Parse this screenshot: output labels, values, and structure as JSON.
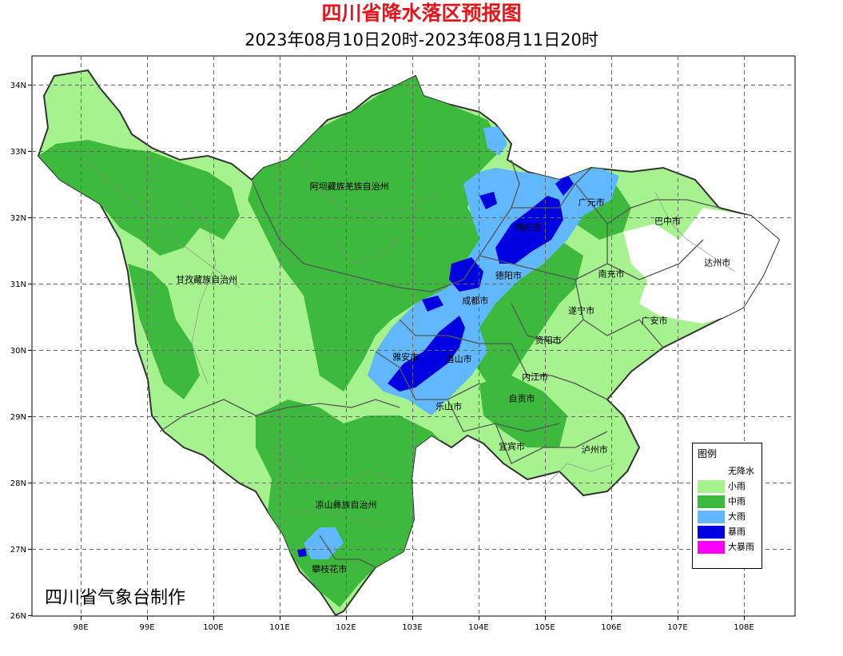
{
  "title": "四川省降水落区预报图",
  "subtitle": "2023年08月10日20时-2023年08月11日20时",
  "credit": "四川省气象台制作",
  "axes": {
    "lon_labels": [
      "98E",
      "99E",
      "100E",
      "101E",
      "102E",
      "103E",
      "104E",
      "105E",
      "106E",
      "107E",
      "108E"
    ],
    "lat_labels": [
      "34N",
      "33N",
      "32N",
      "31N",
      "30N",
      "29N",
      "28N",
      "27N",
      "26N"
    ]
  },
  "map_labels": [
    {
      "name": "阿坝藏族羌族自治州",
      "lon": 102.05,
      "lat": 32.42
    },
    {
      "name": "甘孜藏族自治州",
      "lon": 99.9,
      "lat": 31.02
    },
    {
      "name": "凉山彝族自治州",
      "lon": 102.0,
      "lat": 27.62
    },
    {
      "name": "攀枝花市",
      "lon": 101.75,
      "lat": 26.65
    },
    {
      "name": "广元市",
      "lon": 105.7,
      "lat": 32.18
    },
    {
      "name": "巴中市",
      "lon": 106.85,
      "lat": 31.9
    },
    {
      "name": "绵阳市",
      "lon": 104.75,
      "lat": 31.8
    },
    {
      "name": "达州市",
      "lon": 107.6,
      "lat": 31.27
    },
    {
      "name": "德阳市",
      "lon": 104.45,
      "lat": 31.08
    },
    {
      "name": "南充市",
      "lon": 106.0,
      "lat": 31.1
    },
    {
      "name": "成都市",
      "lon": 103.95,
      "lat": 30.7
    },
    {
      "name": "遂宁市",
      "lon": 105.55,
      "lat": 30.55
    },
    {
      "name": "广安市",
      "lon": 106.65,
      "lat": 30.4
    },
    {
      "name": "资阳市",
      "lon": 105.05,
      "lat": 30.1
    },
    {
      "name": "雅安市",
      "lon": 102.9,
      "lat": 29.85
    },
    {
      "name": "眉山市",
      "lon": 103.7,
      "lat": 29.82
    },
    {
      "name": "内江市",
      "lon": 104.85,
      "lat": 29.55
    },
    {
      "name": "自贡市",
      "lon": 104.65,
      "lat": 29.22
    },
    {
      "name": "乐山市",
      "lon": 103.55,
      "lat": 29.1
    },
    {
      "name": "宜宾市",
      "lon": 104.5,
      "lat": 28.5
    },
    {
      "name": "泸州市",
      "lon": 105.75,
      "lat": 28.45
    }
  ],
  "legend": {
    "title": "图例",
    "items": [
      {
        "label": "无降水",
        "color": "#ffffff"
      },
      {
        "label": "小雨",
        "color": "#a6f28f"
      },
      {
        "label": "中雨",
        "color": "#3db93d"
      },
      {
        "label": "大雨",
        "color": "#61b8ff"
      },
      {
        "label": "暴雨",
        "color": "#0000e1"
      },
      {
        "label": "大暴雨",
        "color": "#fa00fa"
      }
    ]
  }
}
